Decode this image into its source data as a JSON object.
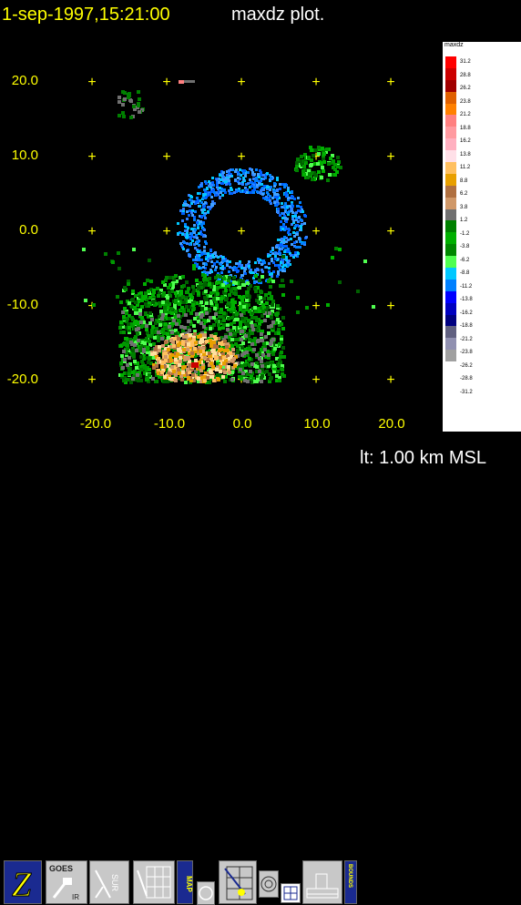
{
  "header": {
    "datetime": "1-sep-1997,15:21:00",
    "plot_name": "maxdz plot."
  },
  "axes": {
    "y_ticks": [
      "20.0",
      "10.0",
      "0.0",
      "-10.0",
      "-20.0"
    ],
    "x_ticks": [
      "-20.0",
      "-10.0",
      "0.0",
      "10.0",
      "20.0"
    ],
    "grid_marks": "+",
    "grid_color": "#ffff00"
  },
  "legend": {
    "title": "maxdz",
    "labels": [
      "31.2",
      "28.8",
      "26.2",
      "23.8",
      "21.2",
      "18.8",
      "16.2",
      "13.8",
      "11.2",
      "8.8",
      "6.2",
      "3.8",
      "1.2",
      "-1.2",
      "-3.8",
      "-6.2",
      "-8.8",
      "-11.2",
      "-13.8",
      "-16.2",
      "-18.8",
      "-21.2",
      "-23.8",
      "-26.2",
      "-28.8",
      "-31.2"
    ],
    "colors": [
      "#ff0000",
      "#cc0000",
      "#a00000",
      "#e06000",
      "#ff8000",
      "#ff8080",
      "#ff9aa0",
      "#ffb0c0",
      "#ffe0e8",
      "#ffc060",
      "#e8a000",
      "#b07040",
      "#d09868",
      "#707070",
      "#008000",
      "#00b000",
      "#008800",
      "#50ff50",
      "#00c8ff",
      "#0080ff",
      "#0000ff",
      "#0000c0",
      "#000080",
      "#606080",
      "#9090b0",
      "#a0a0a0"
    ]
  },
  "toolbar": {
    "buttons": [
      {
        "name": "z-button",
        "label": "Z"
      },
      {
        "name": "goes-ir-button",
        "label": "GOES",
        "sub": "IR"
      },
      {
        "name": "sur-button",
        "label": "SUR"
      },
      {
        "name": "grid-button",
        "label": ""
      },
      {
        "name": "map-button",
        "label": "MAP"
      },
      {
        "name": "circle-button",
        "label": ""
      },
      {
        "name": "range-button",
        "label": ""
      },
      {
        "name": "rings-button",
        "label": ""
      },
      {
        "name": "small-grid-button",
        "label": ""
      },
      {
        "name": "terrain-button",
        "label": ""
      },
      {
        "name": "bounds-button",
        "label": "BOUNDS"
      }
    ]
  },
  "altitude_label": "lt: 1.00 km MSL"
}
